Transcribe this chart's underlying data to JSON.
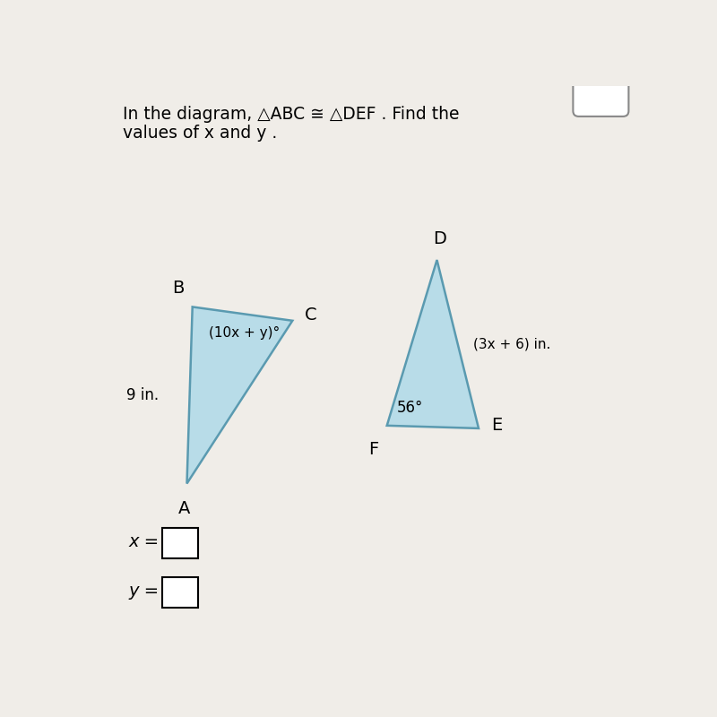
{
  "bg_color": "#f0ede8",
  "triangle_fill": "#b8dce8",
  "triangle_edge": "#5a9ab0",
  "tri1": {
    "A": [
      0.175,
      0.28
    ],
    "B": [
      0.185,
      0.6
    ],
    "C": [
      0.365,
      0.575
    ],
    "label_A": "A",
    "label_B": "B",
    "label_C": "C",
    "side_label": "9 in.",
    "angle_label": "(10x + y)°"
  },
  "tri2": {
    "D": [
      0.625,
      0.685
    ],
    "F": [
      0.535,
      0.385
    ],
    "E": [
      0.7,
      0.38
    ],
    "label_D": "D",
    "label_E": "E",
    "label_F": "F",
    "side_label": "(3x + 6) in.",
    "angle_label": "56°"
  },
  "title_line1": "In the diagram, △ABC ≅ △DEF . Find the",
  "title_line2": "values of x and y .",
  "input_x_label": "x =",
  "input_y_label": "y ="
}
